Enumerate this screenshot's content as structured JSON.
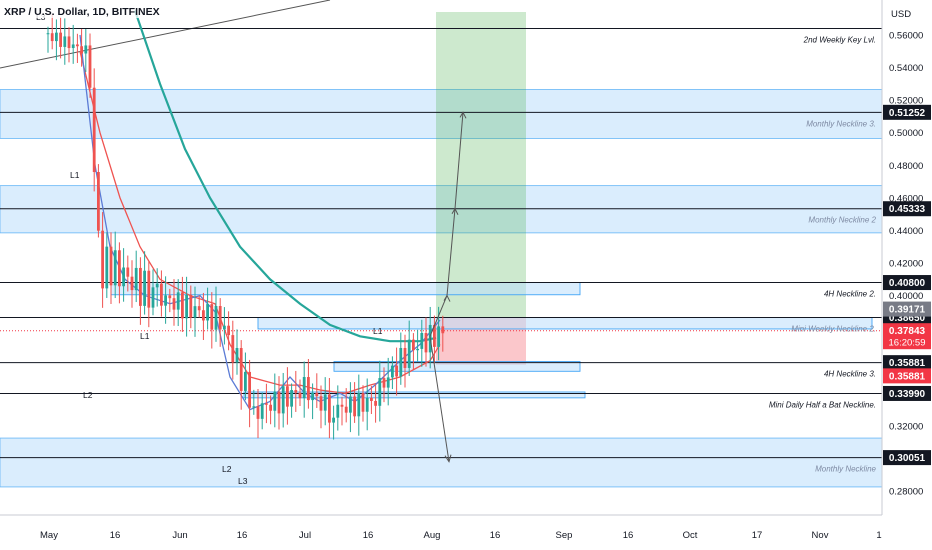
{
  "header": {
    "symbol_title": "XRP / U.S. Dollar, 1D, BITFINEX"
  },
  "currency": "USD",
  "chart_data": {
    "type": "candlestick",
    "title": "XRP / U.S. Dollar, 1D, BITFINEX",
    "ylim": [
      0.27,
      0.572
    ],
    "price_ticks": [
      "0.56000",
      "0.54000",
      "0.52000",
      "0.50000",
      "0.48000",
      "0.46000",
      "0.44000",
      "0.42000",
      "0.40000",
      "0.38000",
      "0.36000",
      "0.34000",
      "0.32000",
      "0.30000",
      "0.28000"
    ],
    "time_ticks": [
      "May",
      "16",
      "Jun",
      "16",
      "Jul",
      "16",
      "Aug",
      "16",
      "Sep",
      "16",
      "Oct",
      "17",
      "Nov",
      "1"
    ],
    "zones": [
      {
        "low": 0.4965,
        "high": 0.5265
      },
      {
        "low": 0.4385,
        "high": 0.4675
      },
      {
        "low": 0.2825,
        "high": 0.3125
      }
    ],
    "level_lines": [
      {
        "price": 0.564,
        "label": "2nd Weekly Key Lvl.",
        "tag": ""
      },
      {
        "price": 0.51252,
        "label": "Monthly Neckline 3.",
        "tag": "0.51252"
      },
      {
        "price": 0.45333,
        "label": "Monthly Neckline 2",
        "tag": "0.45333"
      },
      {
        "price": 0.408,
        "label": "4H Neckline 2.",
        "tag": "0.40800"
      },
      {
        "price": 0.3865,
        "label": "Mini Weekly Neckline 2.",
        "tag": "0.38650"
      },
      {
        "price": 0.35881,
        "label": "4H Neckline 3.",
        "tag": "0.35881"
      },
      {
        "price": 0.3399,
        "label": "Mini Daily Half a Bat Neckline.",
        "tag": "0.33990"
      },
      {
        "price": 0.30051,
        "label": "Monthly Neckline",
        "tag": "0.30051"
      }
    ],
    "price_tags": [
      {
        "value": "0.39171",
        "color": "#787b86"
      },
      {
        "value": "0.37843",
        "subtext": "16:20:59",
        "color": "#f23645"
      },
      {
        "value": "0.35881",
        "color": "#f23645"
      }
    ],
    "point_labels": [
      "L3",
      "L1",
      "L2",
      "L1",
      "L2",
      "L3",
      "L1"
    ],
    "current_price": 0.37843,
    "long_position": {
      "entry": 0.3865,
      "target": 0.572,
      "stop": 0.3575
    },
    "colors": {
      "up": "#26a69a",
      "down": "#ef5350",
      "zone": "#bbdefb",
      "ma_fast": "#5b7bd5",
      "ma_mid": "#ef5350",
      "ma_slow": "#26a69a"
    }
  }
}
